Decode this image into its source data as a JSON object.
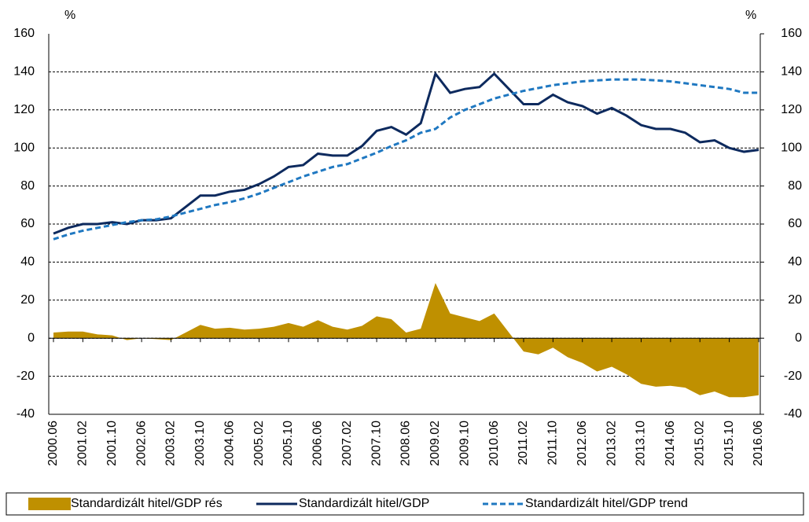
{
  "chart_data": {
    "type": "line-area",
    "ylabel": "%",
    "y2label": "%",
    "ylim": [
      -40,
      160
    ],
    "yticks": [
      -40,
      -20,
      0,
      20,
      40,
      60,
      80,
      100,
      120,
      140,
      160
    ],
    "y2lim": [
      -40,
      160
    ],
    "y2ticks": [
      -40,
      -20,
      0,
      20,
      40,
      60,
      80,
      100,
      120,
      140,
      160
    ],
    "grid": true,
    "categories": [
      "2000.06",
      null,
      "2001.02",
      null,
      "2001.10",
      null,
      "2002.06",
      null,
      "2003.02",
      null,
      "2003.10",
      null,
      "2004.06",
      null,
      "2005.02",
      null,
      "2005.10",
      null,
      "2006.06",
      null,
      "2007.02",
      null,
      "2007.10",
      null,
      "2008.06",
      null,
      "2009.02",
      null,
      "2009.10",
      null,
      "2010.06",
      null,
      "2011.02",
      null,
      "2011.10",
      null,
      "2012.06",
      null,
      "2013.02",
      null,
      "2013.10",
      null,
      "2014.06",
      null,
      "2015.02",
      null,
      "2015.10",
      null,
      "2016.06"
    ],
    "series": [
      {
        "name": "Standardizált hitel/GDP rés",
        "kind": "area",
        "color": "#bf9000",
        "values": [
          3,
          3.5,
          3.5,
          2,
          1.5,
          -1,
          0,
          -0.5,
          -1,
          3,
          7,
          5,
          5.5,
          4.5,
          5,
          6,
          8,
          6,
          9.5,
          6,
          4.5,
          6.5,
          11.5,
          10,
          3,
          5,
          29,
          13,
          11,
          9,
          13,
          3,
          -7,
          -8.5,
          -5,
          -10,
          -13,
          -17.5,
          -15,
          -19,
          -24,
          -25.5,
          -25,
          -26,
          -30,
          -28,
          -31,
          -31,
          -30
        ]
      },
      {
        "name": "Standardizált hitel/GDP",
        "kind": "line",
        "color": "#0d2a5e",
        "values": [
          55,
          58,
          60,
          60,
          61,
          60,
          62,
          62,
          63,
          69,
          75,
          75,
          77,
          78,
          81,
          85,
          90,
          91,
          97,
          96,
          96,
          101,
          109,
          111,
          107,
          113,
          139,
          129,
          131,
          132,
          139,
          131,
          123,
          123,
          128,
          124,
          122,
          118,
          121,
          117,
          112,
          110,
          110,
          108,
          103,
          104,
          100,
          98,
          99
        ]
      },
      {
        "name": "Standardizált hitel/GDP trend",
        "kind": "dashed",
        "color": "#1f78c1",
        "values": [
          52,
          54.5,
          56.5,
          58,
          59.5,
          61,
          62,
          62.5,
          64,
          66,
          68,
          70,
          71.5,
          73.5,
          76,
          79,
          82,
          85,
          87.5,
          90,
          91.5,
          94.5,
          97.5,
          101,
          104,
          108,
          110,
          116,
          120,
          123,
          126,
          128,
          130,
          131.5,
          133,
          134,
          135,
          135.5,
          136,
          136,
          136,
          135.5,
          135,
          134,
          133,
          132,
          131,
          129,
          129
        ]
      }
    ]
  }
}
